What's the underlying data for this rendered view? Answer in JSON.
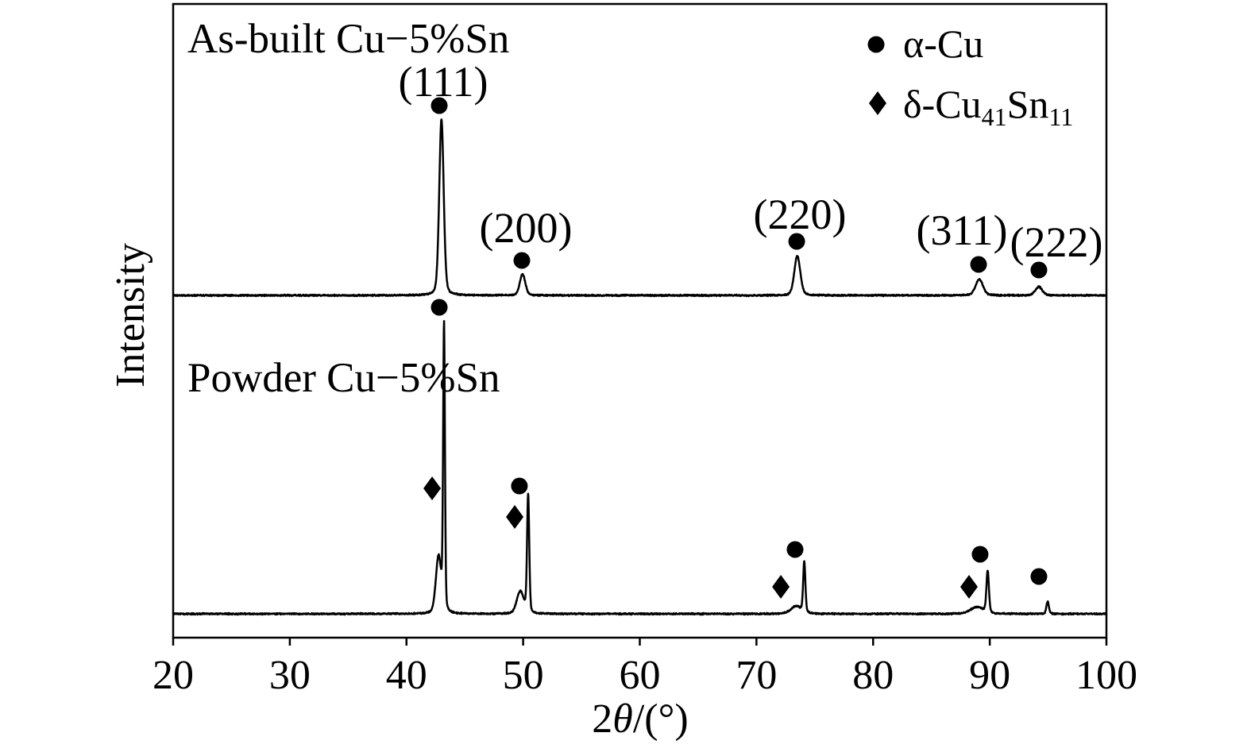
{
  "chart_data": {
    "type": "line",
    "xlabel": "2θ/(°)",
    "ylabel": "Intensity",
    "xlim": [
      20,
      100
    ],
    "xticks": [
      20,
      30,
      40,
      50,
      60,
      70,
      80,
      90,
      100
    ],
    "grid": false,
    "legend_position": "top-right",
    "legend": [
      {
        "symbol": "circle",
        "label": "α-Cu"
      },
      {
        "symbol": "diamond",
        "label": "δ-Cu41Sn11"
      }
    ],
    "series": [
      {
        "name": "As-built Cu−5%Sn",
        "peaks": [
          {
            "x": 43.0,
            "intensity": 59.5,
            "fwhm": 0.45
          },
          {
            "x": 49.95,
            "intensity": 7.2,
            "fwhm": 0.55
          },
          {
            "x": 73.5,
            "intensity": 13.4,
            "fwhm": 0.6
          },
          {
            "x": 89.1,
            "intensity": 5.4,
            "fwhm": 0.75
          },
          {
            "x": 94.2,
            "intensity": 2.9,
            "fwhm": 0.7
          }
        ],
        "markers": [
          {
            "symbol": "circle",
            "x": 42.81,
            "hkl": "(111)"
          },
          {
            "symbol": "circle",
            "x": 49.89,
            "hkl": "(200)"
          },
          {
            "symbol": "circle",
            "x": 73.45,
            "hkl": "(220)"
          },
          {
            "symbol": "circle",
            "x": 89.04,
            "hkl": "(311)"
          },
          {
            "symbol": "circle",
            "x": 94.21,
            "hkl": "(222)"
          }
        ]
      },
      {
        "name": "Powder Cu−5%Sn",
        "peaks": [
          {
            "x": 42.75,
            "intensity": 19,
            "fwhm": 0.55
          },
          {
            "x": 43.22,
            "intensity": 96,
            "fwhm": 0.18
          },
          {
            "x": 49.75,
            "intensity": 7.5,
            "fwhm": 0.7
          },
          {
            "x": 50.43,
            "intensity": 40,
            "fwhm": 0.22
          },
          {
            "x": 73.4,
            "intensity": 2.5,
            "fwhm": 1.1
          },
          {
            "x": 74.1,
            "intensity": 17,
            "fwhm": 0.22
          },
          {
            "x": 88.9,
            "intensity": 2.3,
            "fwhm": 1.3
          },
          {
            "x": 89.82,
            "intensity": 14,
            "fwhm": 0.25
          },
          {
            "x": 94.96,
            "intensity": 4.2,
            "fwhm": 0.25
          }
        ],
        "markers": [
          {
            "symbol": "circle",
            "x": 42.81
          },
          {
            "symbol": "circle",
            "x": 49.68
          },
          {
            "symbol": "circle",
            "x": 73.31
          },
          {
            "symbol": "circle",
            "x": 89.17
          },
          {
            "symbol": "circle",
            "x": 94.21
          },
          {
            "symbol": "diamond",
            "x": 42.2
          },
          {
            "symbol": "diamond",
            "x": 49.28
          },
          {
            "symbol": "diamond",
            "x": 72.09
          },
          {
            "symbol": "diamond",
            "x": 88.22
          }
        ]
      }
    ]
  }
}
